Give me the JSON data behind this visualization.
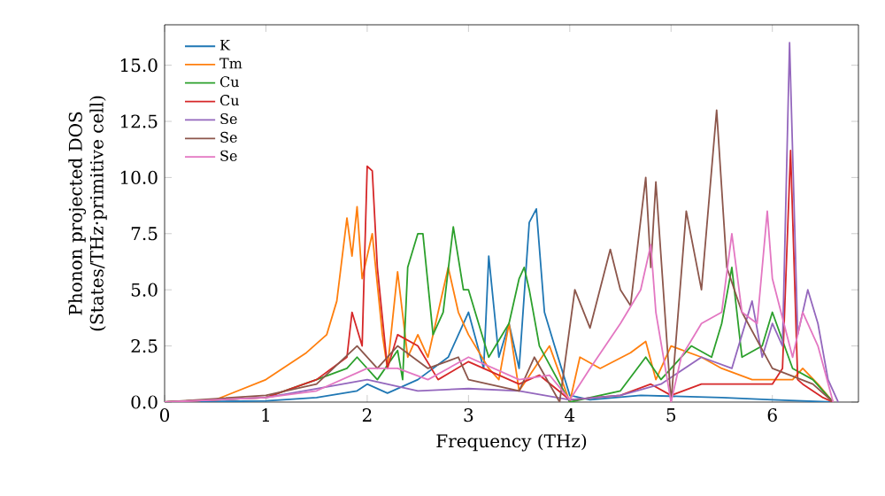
{
  "chart_data": {
    "type": "line",
    "xlabel": "Frequency (THz)",
    "ylabel": "Phonon projected DOS\n(States/THz·primitive cell)",
    "xlim": [
      0,
      6.85
    ],
    "ylim": [
      0,
      16.8
    ],
    "xticks": [
      0,
      1,
      2,
      3,
      4,
      5,
      6
    ],
    "yticks": [
      {
        "value": 0,
        "label": "0.0"
      },
      {
        "value": 2.5,
        "label": "2.5"
      },
      {
        "value": 5,
        "label": "5.0"
      },
      {
        "value": 7.5,
        "label": "7.5"
      },
      {
        "value": 10,
        "label": "10.0"
      },
      {
        "value": 12.5,
        "label": "12.5"
      },
      {
        "value": 15,
        "label": "15.0"
      }
    ],
    "legend": "top left",
    "grid": false,
    "marker": "none",
    "line_style": "solid",
    "series": [
      {
        "name": "K",
        "color": "#1f77b4",
        "x": [
          0,
          1.0,
          1.5,
          1.9,
          2.0,
          2.2,
          2.5,
          2.8,
          3.0,
          3.15,
          3.2,
          3.3,
          3.4,
          3.5,
          3.6,
          3.67,
          3.75,
          3.85,
          4.0,
          4.2,
          4.7,
          5.5,
          6.0,
          6.6
        ],
        "values": [
          0,
          0.05,
          0.2,
          0.5,
          0.8,
          0.4,
          1.0,
          2.0,
          4.0,
          1.5,
          6.5,
          2.0,
          3.5,
          1.5,
          8.0,
          8.6,
          4.0,
          2.5,
          0.3,
          0.1,
          0.3,
          0.2,
          0.1,
          0
        ]
      },
      {
        "name": "Tm",
        "color": "#ff7f0e",
        "x": [
          0,
          0.5,
          1.0,
          1.4,
          1.6,
          1.7,
          1.8,
          1.85,
          1.9,
          1.95,
          2.05,
          2.15,
          2.2,
          2.3,
          2.4,
          2.5,
          2.6,
          2.75,
          2.8,
          2.9,
          3.0,
          3.2,
          3.3,
          3.4,
          3.5,
          3.8,
          4.0,
          4.1,
          4.3,
          4.6,
          4.75,
          4.85,
          5.0,
          5.3,
          5.5,
          5.8,
          6.2,
          6.3,
          6.45,
          6.6
        ],
        "values": [
          0,
          0.1,
          1.0,
          2.2,
          3.0,
          4.5,
          8.2,
          6.5,
          8.7,
          5.5,
          7.5,
          3.0,
          1.5,
          5.8,
          2.0,
          3.0,
          2.0,
          5.0,
          6.0,
          4.0,
          3.0,
          1.5,
          1.0,
          3.5,
          0.5,
          2.5,
          0.0,
          2.0,
          1.5,
          2.2,
          2.7,
          1.0,
          2.5,
          2.0,
          1.5,
          1.0,
          1.0,
          1.5,
          0.8,
          0
        ]
      },
      {
        "name": "Cu",
        "color": "#2ca02c",
        "x": [
          0,
          1.0,
          1.5,
          1.8,
          1.9,
          2.1,
          2.3,
          2.35,
          2.4,
          2.5,
          2.55,
          2.65,
          2.75,
          2.85,
          2.95,
          3.0,
          3.2,
          3.4,
          3.5,
          3.55,
          3.6,
          3.7,
          4.0,
          4.5,
          4.75,
          4.9,
          5.2,
          5.4,
          5.5,
          5.6,
          5.7,
          5.9,
          6.0,
          6.2,
          6.4,
          6.6
        ],
        "values": [
          0,
          0.2,
          1.0,
          1.5,
          2.0,
          1.0,
          2.3,
          1.0,
          6.0,
          7.5,
          7.5,
          3.0,
          4.0,
          7.8,
          5.0,
          5.0,
          2.0,
          3.5,
          5.5,
          6.0,
          5.0,
          2.5,
          0.0,
          0.5,
          2.0,
          1.0,
          2.5,
          2.0,
          3.5,
          6.0,
          2.0,
          2.5,
          4.0,
          1.5,
          1.0,
          0
        ]
      },
      {
        "name": "Cu",
        "color": "#d62728",
        "x": [
          0,
          1.0,
          1.5,
          1.8,
          1.85,
          1.95,
          2.0,
          2.05,
          2.1,
          2.2,
          2.3,
          2.5,
          2.7,
          3.0,
          3.5,
          3.7,
          4.0,
          4.5,
          4.8,
          5.0,
          5.3,
          5.6,
          6.0,
          6.1,
          6.18,
          6.25,
          6.3,
          6.5,
          6.6
        ],
        "values": [
          0,
          0.2,
          1.0,
          2.0,
          4.0,
          2.5,
          10.5,
          10.3,
          6.0,
          1.5,
          3.0,
          2.5,
          1.0,
          1.8,
          0.8,
          1.2,
          0.1,
          0.3,
          0.8,
          0.3,
          0.8,
          0.8,
          0.8,
          1.5,
          11.2,
          1.0,
          0.8,
          0.2,
          0
        ]
      },
      {
        "name": "Se",
        "color": "#9467bd",
        "x": [
          0,
          1.0,
          1.5,
          2.0,
          2.5,
          3.0,
          3.5,
          4.0,
          4.5,
          4.9,
          5.3,
          5.6,
          5.8,
          5.9,
          6.0,
          6.1,
          6.17,
          6.25,
          6.35,
          6.45,
          6.55,
          6.65
        ],
        "values": [
          0,
          0.2,
          0.6,
          1.0,
          0.5,
          0.6,
          0.5,
          0.1,
          0.3,
          0.8,
          2.0,
          1.5,
          4.5,
          2.0,
          3.5,
          2.5,
          16.0,
          3.0,
          5.0,
          3.5,
          1.0,
          0
        ]
      },
      {
        "name": "Se",
        "color": "#8c564b",
        "x": [
          0,
          1.0,
          1.5,
          1.9,
          2.1,
          2.3,
          2.6,
          2.9,
          3.0,
          3.5,
          3.65,
          3.9,
          4.05,
          4.2,
          4.4,
          4.5,
          4.6,
          4.75,
          4.8,
          4.85,
          5.0,
          5.15,
          5.3,
          5.45,
          5.55,
          5.7,
          6.0,
          6.4,
          6.6
        ],
        "values": [
          0,
          0.3,
          0.8,
          2.5,
          1.5,
          2.5,
          1.5,
          2.0,
          1.0,
          0.5,
          2.0,
          0.0,
          5.0,
          3.3,
          6.8,
          5.0,
          4.3,
          10.0,
          6.0,
          9.8,
          0.0,
          8.5,
          5.0,
          13.0,
          6.0,
          4.0,
          1.5,
          0.8,
          0
        ]
      },
      {
        "name": "Se",
        "color": "#e377c2",
        "x": [
          0,
          1.0,
          1.5,
          2.0,
          2.3,
          2.6,
          2.8,
          3.0,
          3.5,
          3.8,
          4.0,
          4.2,
          4.5,
          4.7,
          4.8,
          4.85,
          5.0,
          5.1,
          5.3,
          5.5,
          5.6,
          5.7,
          5.85,
          5.95,
          6.0,
          6.2,
          6.3,
          6.45,
          6.6
        ],
        "values": [
          0,
          0.2,
          0.5,
          1.5,
          1.5,
          1.0,
          1.5,
          2.0,
          1.0,
          1.2,
          0.1,
          1.5,
          3.5,
          5.0,
          7.0,
          4.0,
          0.0,
          2.0,
          3.5,
          4.0,
          7.5,
          4.0,
          3.5,
          8.5,
          5.5,
          2.0,
          4.0,
          2.5,
          0
        ]
      }
    ]
  }
}
